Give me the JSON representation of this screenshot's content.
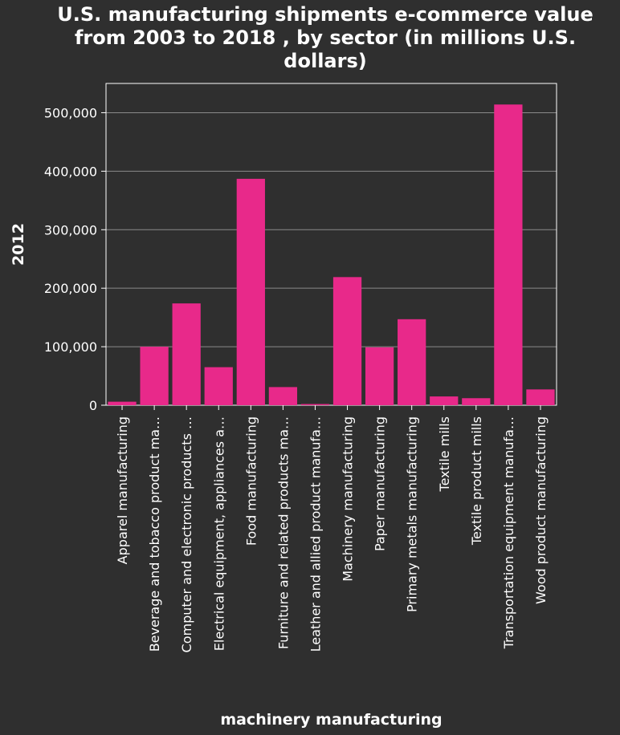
{
  "chart_data": {
    "type": "bar",
    "title": "U.S. manufacturing shipments e-commerce value from 2003 to 2018 , by sector (in millions U.S. dollars)",
    "xlabel": "machinery manufacturing",
    "ylabel": "2012",
    "ylim": [
      0,
      550000
    ],
    "yticks": [
      0,
      100000,
      200000,
      300000,
      400000,
      500000
    ],
    "ytick_labels": [
      "0",
      "100,000",
      "200,000",
      "300,000",
      "400,000",
      "500,000"
    ],
    "grid": true,
    "categories": [
      "Apparel manufacturing",
      "Beverage and tobacco product ma…",
      "Computer and electronic products …",
      "Electrical equipment, appliances a…",
      "Food manufacturing",
      "Furniture and related products ma…",
      "Leather and allied product manufa…",
      "Machinery manufacturing",
      "Paper manufacturing",
      "Primary metals manufacturing",
      "Textile mills",
      "Textile product mills",
      "Transportation equipment manufa…",
      "Wood product manufacturing"
    ],
    "values": [
      6000,
      100000,
      174000,
      65000,
      387000,
      31000,
      2000,
      219000,
      99000,
      147000,
      15000,
      12000,
      514000,
      27000
    ],
    "colors": {
      "bar": "#e8298a",
      "background": "#2f2f2f",
      "grid": "#8a8a8a",
      "text": "#ffffff"
    }
  }
}
